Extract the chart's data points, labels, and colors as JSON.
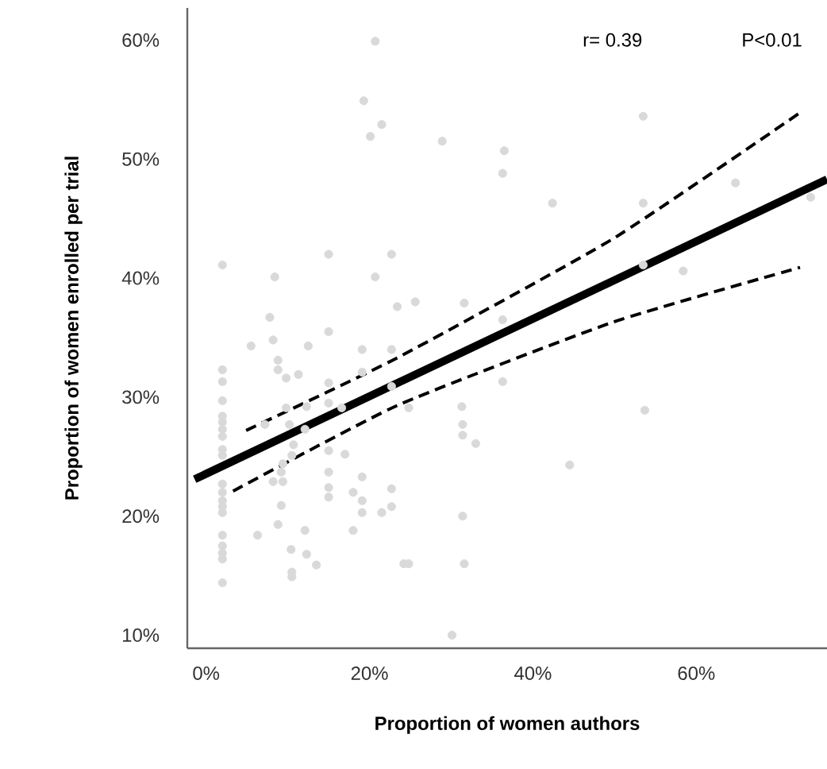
{
  "chart_data": {
    "type": "scatter",
    "xlabel": "Proportion of women authors",
    "ylabel": "Proportion of women enrolled per trial",
    "xlim": [
      -2.3,
      76
    ],
    "ylim": [
      8.9,
      62.7
    ],
    "xticks": [
      {
        "value": 0,
        "label": "0%"
      },
      {
        "value": 20,
        "label": "20%"
      },
      {
        "value": 40,
        "label": "40%"
      },
      {
        "value": 60,
        "label": "60%"
      }
    ],
    "yticks": [
      {
        "value": 10,
        "label": "10%"
      },
      {
        "value": 20,
        "label": "20%"
      },
      {
        "value": 30,
        "label": "30%"
      },
      {
        "value": 40,
        "label": "40%"
      },
      {
        "value": 50,
        "label": "50%"
      },
      {
        "value": 60,
        "label": "60%"
      }
    ],
    "annotations": [
      "r= 0.39",
      "P<0.01"
    ],
    "series": [
      {
        "color": "#d9d9d9",
        "marker": "circle",
        "x": [
          2.0,
          2.0,
          2.0,
          2.0,
          2.0,
          2.0,
          2.0,
          2.0,
          2.0,
          2.0,
          2.0,
          2.0,
          2.0,
          2.0,
          2.0,
          2.0,
          2.0,
          2.0,
          2.0,
          2.0,
          5.5,
          7.8,
          8.2,
          8.8,
          8.8,
          9.8,
          11.3,
          12.5,
          15.0,
          15.0,
          15.0,
          16.6,
          19.1,
          19.1,
          22.7,
          22.7,
          7.2,
          9.8,
          10.2,
          10.7,
          10.5,
          12.1,
          12.3,
          9.4,
          9.2,
          8.2,
          9.4,
          9.2,
          8.8,
          6.3,
          12.1,
          10.4,
          12.3,
          10.5,
          10.5,
          13.5,
          15.0,
          15.0,
          15.0,
          15.0,
          17.0,
          18.0,
          19.1,
          19.1,
          19.1,
          21.5,
          22.7,
          22.7,
          18.0,
          24.2,
          20.7,
          19.3,
          21.5,
          20.1,
          8.4,
          15.0,
          22.7,
          20.7,
          23.4,
          28.9,
          36.5,
          36.3,
          42.4,
          25.6,
          31.6,
          36.3,
          36.3,
          24.8,
          31.3,
          31.4,
          31.4,
          33.0,
          44.5,
          31.4,
          24.8,
          31.6,
          30.1,
          53.5,
          53.5,
          64.8,
          74.0,
          53.5,
          58.4,
          53.7
        ],
        "values": [
          41.1,
          32.3,
          31.3,
          29.7,
          28.4,
          27.9,
          27.3,
          26.7,
          25.6,
          25.1,
          22.7,
          22.0,
          21.3,
          20.8,
          20.3,
          18.4,
          17.5,
          16.9,
          16.4,
          14.4,
          34.3,
          36.7,
          34.8,
          33.1,
          32.3,
          31.6,
          31.9,
          34.3,
          35.5,
          31.2,
          29.5,
          29.1,
          34.0,
          32.1,
          34.0,
          30.9,
          27.7,
          29.1,
          27.7,
          26.0,
          25.1,
          27.3,
          29.2,
          24.4,
          23.7,
          22.9,
          22.9,
          20.9,
          19.3,
          18.4,
          18.8,
          17.2,
          16.8,
          15.3,
          14.9,
          15.9,
          25.5,
          23.7,
          22.4,
          21.6,
          25.2,
          22.0,
          23.3,
          21.3,
          20.3,
          20.3,
          22.3,
          20.8,
          18.8,
          16.0,
          59.9,
          54.9,
          52.9,
          51.9,
          40.1,
          42.0,
          42.0,
          40.1,
          37.6,
          51.5,
          50.7,
          48.8,
          46.3,
          38.0,
          37.9,
          36.5,
          31.3,
          29.1,
          29.2,
          27.7,
          26.8,
          26.1,
          24.3,
          20.0,
          16.0,
          16.0,
          10.0,
          53.6,
          46.3,
          48.0,
          46.8,
          41.1,
          40.6,
          28.9
        ]
      },
      {
        "type": "line",
        "color": "#000000",
        "line_style": "solid",
        "marker": "none",
        "x": [
          -1.4,
          76.0
        ],
        "values": [
          23.1,
          48.3
        ]
      },
      {
        "type": "line",
        "color": "#000000",
        "line_style": "dashed",
        "marker": "none",
        "x": [
          4.9,
          23.4,
          49.8,
          72.7
        ],
        "values": [
          27.2,
          33.3,
          43.3,
          53.9
        ]
      },
      {
        "type": "line",
        "color": "#000000",
        "line_style": "dashed",
        "marker": "none",
        "x": [
          3.3,
          23.4,
          49.8,
          72.7
        ],
        "values": [
          22.1,
          29.3,
          36.3,
          40.9
        ]
      }
    ]
  }
}
